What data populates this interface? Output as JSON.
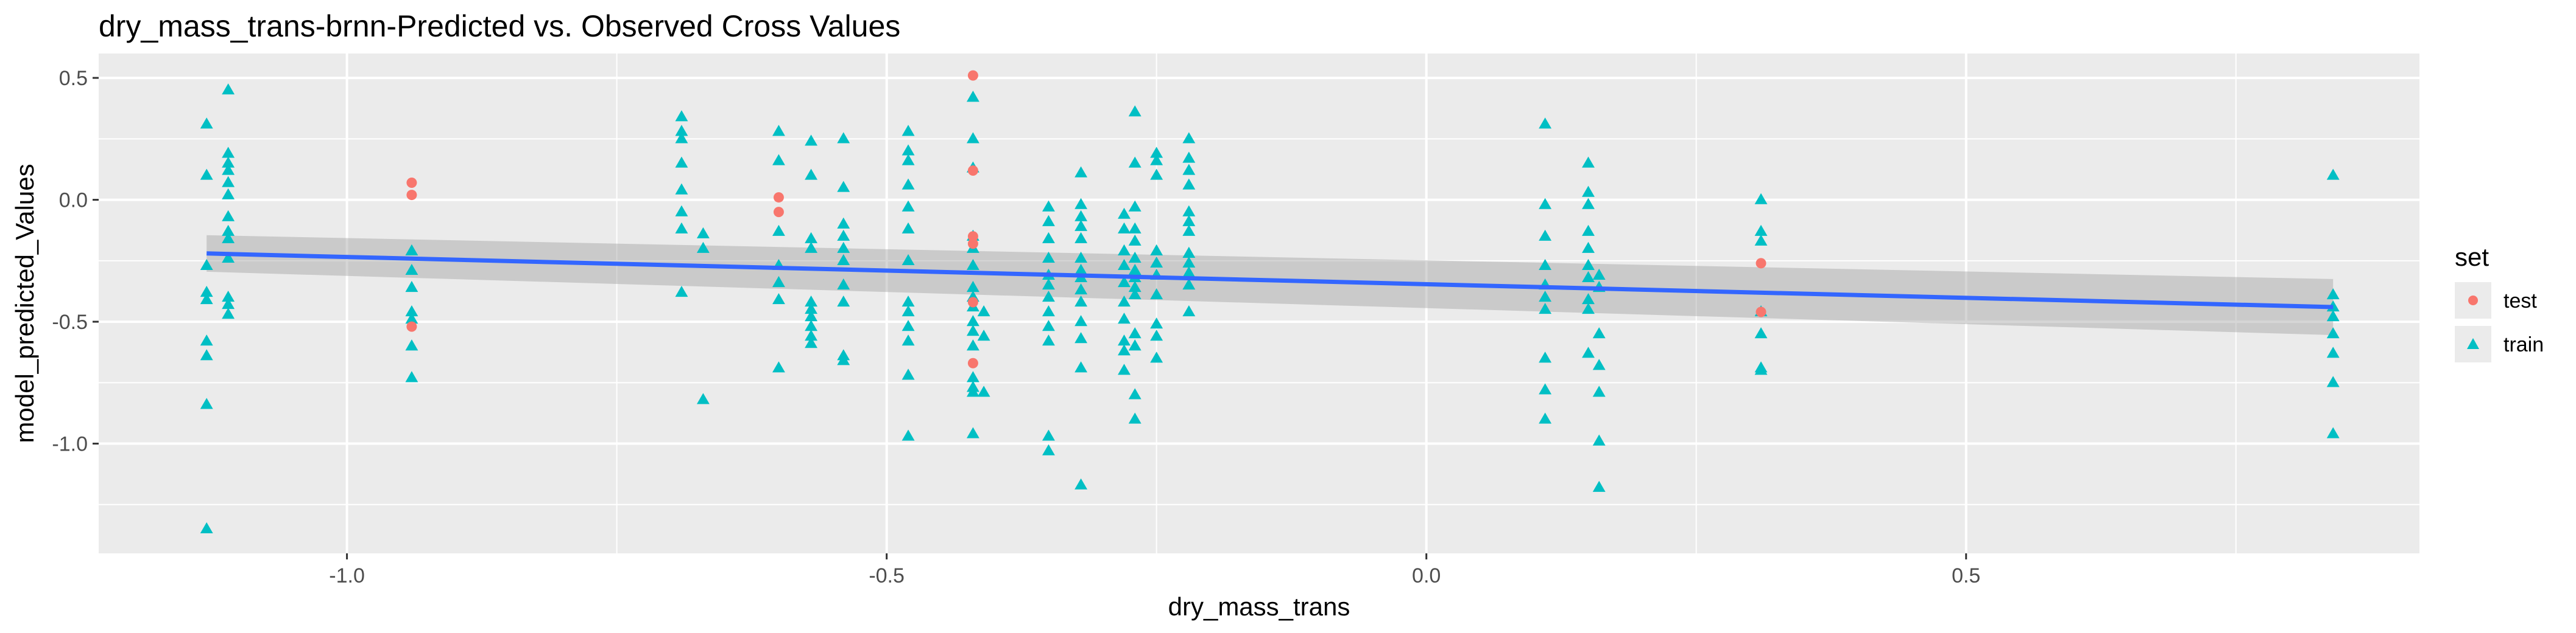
{
  "chart_data": {
    "type": "scatter",
    "title": "dry_mass_trans-brnn-Predicted vs. Observed Cross Values",
    "xlabel": "dry_mass_trans",
    "ylabel": "model_predicted_Values",
    "xlim": [
      -1.23,
      0.92
    ],
    "ylim": [
      -1.45,
      0.6
    ],
    "x_ticks": [
      -1.0,
      -0.5,
      0.0,
      0.5
    ],
    "x_tick_labels": [
      "-1.0",
      "-0.5",
      "0.0",
      "0.5"
    ],
    "y_ticks": [
      -1.0,
      -0.5,
      0.0,
      0.5
    ],
    "y_tick_labels": [
      "-1.0",
      "-0.5",
      "0.0",
      "0.5"
    ],
    "grid": true,
    "legend": {
      "title": "set",
      "position": "right",
      "entries": [
        {
          "label": "test",
          "shape": "circle",
          "color": "#F8766D"
        },
        {
          "label": "train",
          "shape": "triangle",
          "color": "#00BFC4"
        }
      ]
    },
    "colors": {
      "test": "#F8766D",
      "train": "#00BFC4",
      "fit_line": "#3366FF",
      "confidence_band": "#999999",
      "panel_background": "#EBEBEB",
      "grid": "#FFFFFF"
    },
    "series": [
      {
        "name": "train",
        "shape": "triangle",
        "points": [
          [
            -1.13,
            0.31
          ],
          [
            -1.13,
            0.1
          ],
          [
            -1.13,
            -0.27
          ],
          [
            -1.13,
            -0.38
          ],
          [
            -1.13,
            -0.41
          ],
          [
            -1.13,
            -0.58
          ],
          [
            -1.13,
            -0.64
          ],
          [
            -1.13,
            -0.84
          ],
          [
            -1.13,
            -1.35
          ],
          [
            -1.11,
            0.45
          ],
          [
            -1.11,
            0.19
          ],
          [
            -1.11,
            0.15
          ],
          [
            -1.11,
            0.12
          ],
          [
            -1.11,
            0.07
          ],
          [
            -1.11,
            0.02
          ],
          [
            -1.11,
            -0.07
          ],
          [
            -1.11,
            -0.13
          ],
          [
            -1.11,
            -0.16
          ],
          [
            -1.11,
            -0.24
          ],
          [
            -1.11,
            -0.4
          ],
          [
            -1.11,
            -0.43
          ],
          [
            -1.11,
            -0.47
          ],
          [
            -0.94,
            -0.21
          ],
          [
            -0.94,
            -0.29
          ],
          [
            -0.94,
            -0.36
          ],
          [
            -0.94,
            -0.46
          ],
          [
            -0.94,
            -0.49
          ],
          [
            -0.94,
            -0.6
          ],
          [
            -0.94,
            -0.73
          ],
          [
            -0.69,
            0.34
          ],
          [
            -0.69,
            0.28
          ],
          [
            -0.69,
            0.25
          ],
          [
            -0.69,
            0.15
          ],
          [
            -0.69,
            0.04
          ],
          [
            -0.69,
            -0.05
          ],
          [
            -0.69,
            -0.12
          ],
          [
            -0.69,
            -0.38
          ],
          [
            -0.67,
            -0.14
          ],
          [
            -0.67,
            -0.2
          ],
          [
            -0.67,
            -0.82
          ],
          [
            -0.6,
            0.28
          ],
          [
            -0.6,
            0.16
          ],
          [
            -0.6,
            -0.13
          ],
          [
            -0.6,
            -0.27
          ],
          [
            -0.6,
            -0.34
          ],
          [
            -0.6,
            -0.41
          ],
          [
            -0.6,
            -0.69
          ],
          [
            -0.57,
            0.24
          ],
          [
            -0.57,
            0.1
          ],
          [
            -0.57,
            -0.16
          ],
          [
            -0.57,
            -0.2
          ],
          [
            -0.57,
            -0.42
          ],
          [
            -0.57,
            -0.45
          ],
          [
            -0.57,
            -0.48
          ],
          [
            -0.57,
            -0.52
          ],
          [
            -0.57,
            -0.56
          ],
          [
            -0.57,
            -0.59
          ],
          [
            -0.54,
            0.25
          ],
          [
            -0.54,
            0.05
          ],
          [
            -0.54,
            -0.1
          ],
          [
            -0.54,
            -0.15
          ],
          [
            -0.54,
            -0.2
          ],
          [
            -0.54,
            -0.25
          ],
          [
            -0.54,
            -0.35
          ],
          [
            -0.54,
            -0.42
          ],
          [
            -0.54,
            -0.64
          ],
          [
            -0.54,
            -0.66
          ],
          [
            -0.48,
            0.28
          ],
          [
            -0.48,
            0.2
          ],
          [
            -0.48,
            0.16
          ],
          [
            -0.48,
            0.06
          ],
          [
            -0.48,
            -0.03
          ],
          [
            -0.48,
            -0.12
          ],
          [
            -0.48,
            -0.25
          ],
          [
            -0.48,
            -0.42
          ],
          [
            -0.48,
            -0.46
          ],
          [
            -0.48,
            -0.52
          ],
          [
            -0.48,
            -0.58
          ],
          [
            -0.48,
            -0.72
          ],
          [
            -0.48,
            -0.97
          ],
          [
            -0.42,
            0.42
          ],
          [
            -0.42,
            0.25
          ],
          [
            -0.42,
            0.13
          ],
          [
            -0.42,
            -0.15
          ],
          [
            -0.42,
            -0.2
          ],
          [
            -0.42,
            -0.27
          ],
          [
            -0.42,
            -0.36
          ],
          [
            -0.42,
            -0.4
          ],
          [
            -0.42,
            -0.44
          ],
          [
            -0.42,
            -0.5
          ],
          [
            -0.42,
            -0.54
          ],
          [
            -0.42,
            -0.6
          ],
          [
            -0.42,
            -0.73
          ],
          [
            -0.42,
            -0.77
          ],
          [
            -0.42,
            -0.79
          ],
          [
            -0.42,
            -0.96
          ],
          [
            -0.41,
            -0.46
          ],
          [
            -0.41,
            -0.56
          ],
          [
            -0.41,
            -0.79
          ],
          [
            -0.35,
            -0.03
          ],
          [
            -0.35,
            -0.09
          ],
          [
            -0.35,
            -0.16
          ],
          [
            -0.35,
            -0.24
          ],
          [
            -0.35,
            -0.31
          ],
          [
            -0.35,
            -0.35
          ],
          [
            -0.35,
            -0.4
          ],
          [
            -0.35,
            -0.46
          ],
          [
            -0.35,
            -0.52
          ],
          [
            -0.35,
            -0.58
          ],
          [
            -0.35,
            -0.97
          ],
          [
            -0.35,
            -1.03
          ],
          [
            -0.32,
            0.11
          ],
          [
            -0.32,
            -0.02
          ],
          [
            -0.32,
            -0.07
          ],
          [
            -0.32,
            -0.11
          ],
          [
            -0.32,
            -0.16
          ],
          [
            -0.32,
            -0.24
          ],
          [
            -0.32,
            -0.29
          ],
          [
            -0.32,
            -0.32
          ],
          [
            -0.32,
            -0.37
          ],
          [
            -0.32,
            -0.42
          ],
          [
            -0.32,
            -0.5
          ],
          [
            -0.32,
            -0.57
          ],
          [
            -0.32,
            -0.69
          ],
          [
            -0.32,
            -1.17
          ],
          [
            -0.28,
            -0.06
          ],
          [
            -0.28,
            -0.12
          ],
          [
            -0.28,
            -0.21
          ],
          [
            -0.28,
            -0.27
          ],
          [
            -0.28,
            -0.34
          ],
          [
            -0.28,
            -0.42
          ],
          [
            -0.28,
            -0.49
          ],
          [
            -0.28,
            -0.58
          ],
          [
            -0.28,
            -0.62
          ],
          [
            -0.28,
            -0.7
          ],
          [
            -0.27,
            0.36
          ],
          [
            -0.27,
            0.15
          ],
          [
            -0.27,
            -0.03
          ],
          [
            -0.27,
            -0.12
          ],
          [
            -0.27,
            -0.17
          ],
          [
            -0.27,
            -0.24
          ],
          [
            -0.27,
            -0.29
          ],
          [
            -0.27,
            -0.32
          ],
          [
            -0.27,
            -0.36
          ],
          [
            -0.27,
            -0.39
          ],
          [
            -0.27,
            -0.55
          ],
          [
            -0.27,
            -0.6
          ],
          [
            -0.27,
            -0.8
          ],
          [
            -0.27,
            -0.9
          ],
          [
            -0.25,
            0.19
          ],
          [
            -0.25,
            0.16
          ],
          [
            -0.25,
            0.1
          ],
          [
            -0.25,
            -0.21
          ],
          [
            -0.25,
            -0.26
          ],
          [
            -0.25,
            -0.31
          ],
          [
            -0.25,
            -0.39
          ],
          [
            -0.25,
            -0.51
          ],
          [
            -0.25,
            -0.56
          ],
          [
            -0.25,
            -0.65
          ],
          [
            -0.22,
            0.25
          ],
          [
            -0.22,
            0.17
          ],
          [
            -0.22,
            0.12
          ],
          [
            -0.22,
            0.06
          ],
          [
            -0.22,
            -0.05
          ],
          [
            -0.22,
            -0.09
          ],
          [
            -0.22,
            -0.13
          ],
          [
            -0.22,
            -0.22
          ],
          [
            -0.22,
            -0.26
          ],
          [
            -0.22,
            -0.3
          ],
          [
            -0.22,
            -0.35
          ],
          [
            -0.22,
            -0.46
          ],
          [
            0.11,
            0.31
          ],
          [
            0.11,
            -0.02
          ],
          [
            0.11,
            -0.15
          ],
          [
            0.11,
            -0.27
          ],
          [
            0.11,
            -0.35
          ],
          [
            0.11,
            -0.4
          ],
          [
            0.11,
            -0.45
          ],
          [
            0.11,
            -0.65
          ],
          [
            0.11,
            -0.78
          ],
          [
            0.11,
            -0.9
          ],
          [
            0.15,
            0.15
          ],
          [
            0.15,
            0.03
          ],
          [
            0.15,
            -0.02
          ],
          [
            0.15,
            -0.13
          ],
          [
            0.15,
            -0.2
          ],
          [
            0.15,
            -0.27
          ],
          [
            0.15,
            -0.32
          ],
          [
            0.15,
            -0.41
          ],
          [
            0.15,
            -0.45
          ],
          [
            0.15,
            -0.63
          ],
          [
            0.16,
            -0.31
          ],
          [
            0.16,
            -0.36
          ],
          [
            0.16,
            -0.55
          ],
          [
            0.16,
            -0.68
          ],
          [
            0.16,
            -0.79
          ],
          [
            0.16,
            -0.99
          ],
          [
            0.16,
            -1.18
          ],
          [
            0.31,
            0.0
          ],
          [
            0.31,
            -0.13
          ],
          [
            0.31,
            -0.17
          ],
          [
            0.31,
            -0.46
          ],
          [
            0.31,
            -0.55
          ],
          [
            0.31,
            -0.69
          ],
          [
            0.31,
            -0.7
          ],
          [
            0.84,
            0.1
          ],
          [
            0.84,
            -0.39
          ],
          [
            0.84,
            -0.44
          ],
          [
            0.84,
            -0.48
          ],
          [
            0.84,
            -0.55
          ],
          [
            0.84,
            -0.63
          ],
          [
            0.84,
            -0.75
          ],
          [
            0.84,
            -0.96
          ]
        ]
      },
      {
        "name": "test",
        "shape": "circle",
        "points": [
          [
            -0.94,
            0.07
          ],
          [
            -0.94,
            0.02
          ],
          [
            -0.94,
            -0.52
          ],
          [
            -0.6,
            0.01
          ],
          [
            -0.6,
            -0.05
          ],
          [
            -0.42,
            0.51
          ],
          [
            -0.42,
            0.12
          ],
          [
            -0.42,
            -0.15
          ],
          [
            -0.42,
            -0.18
          ],
          [
            -0.42,
            -0.42
          ],
          [
            -0.42,
            -0.67
          ],
          [
            0.31,
            -0.26
          ],
          [
            0.31,
            -0.46
          ]
        ]
      }
    ],
    "trend_line": {
      "method": "lm",
      "x": [
        -1.13,
        0.84
      ],
      "y": [
        -0.22,
        -0.44
      ],
      "band_upper": [
        -0.145,
        -0.325
      ],
      "band_lower": [
        -0.295,
        -0.555
      ]
    }
  }
}
